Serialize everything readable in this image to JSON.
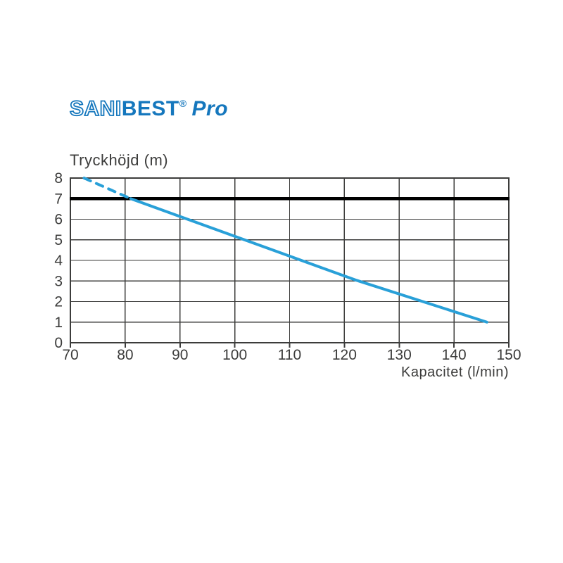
{
  "logo": {
    "sani": "SANI",
    "best": "BEST",
    "reg": "®",
    "pro": "Pro",
    "color": "#1577BD"
  },
  "chart_data": {
    "type": "line",
    "title": "Tryckhöjd (m)",
    "xlabel": "Kapacitet (l/min)",
    "ylabel": "Tryckhöjd (m)",
    "xlim": [
      70,
      150
    ],
    "ylim": [
      0,
      8
    ],
    "xticks": [
      70,
      80,
      90,
      100,
      110,
      120,
      130,
      140,
      150
    ],
    "yticks": [
      0,
      1,
      2,
      3,
      4,
      5,
      6,
      7,
      8
    ],
    "grid": true,
    "legend": false,
    "colors": {
      "grid": "#3C3C3B",
      "text": "#3C3C3B",
      "curve": "#29A0D8",
      "reference": "#000000"
    },
    "reference_line_y": 7,
    "series": [
      {
        "name": "pump-curve-dashed",
        "style": "dashed",
        "points": [
          [
            72.5,
            8
          ],
          [
            81,
            7
          ]
        ]
      },
      {
        "name": "pump-curve",
        "style": "solid",
        "points": [
          [
            81,
            7
          ],
          [
            122,
            3.05
          ],
          [
            146,
            1
          ]
        ]
      }
    ]
  }
}
